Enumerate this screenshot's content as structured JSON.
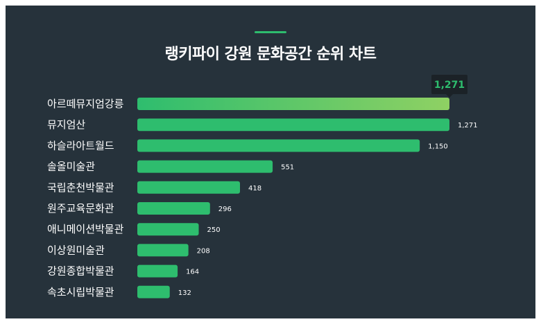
{
  "title": "랭키파이 강원 문화공간 순위 차트",
  "colors": {
    "background": "#26323b",
    "bar": "#2ebd6e",
    "highlight_start": "#2ebd6e",
    "highlight_end": "#8fd163",
    "tooltip_bg": "#1b2227",
    "accent": "#2ebd6e"
  },
  "chart_data": {
    "type": "bar",
    "orientation": "horizontal",
    "title": "랭키파이 강원 문화공간 순위 차트",
    "categories": [
      "아르떼뮤지엄강릉",
      "뮤지엄산",
      "하슬라아트월드",
      "솔올미술관",
      "국립춘천박물관",
      "원주교육문화관",
      "애니메이션박물관",
      "이상원미술관",
      "강원종합박물관",
      "속초시립박물관"
    ],
    "values": [
      1271,
      1271,
      1150,
      551,
      418,
      296,
      250,
      208,
      164,
      132
    ],
    "value_labels": [
      "1,271",
      "1,271",
      "1,150",
      "551",
      "418",
      "296",
      "250",
      "208",
      "164",
      "132"
    ],
    "highlight": {
      "index": 0,
      "label": "1,271",
      "style": "gradient with tooltip"
    },
    "xlim": [
      0,
      1271
    ],
    "grid": false,
    "legend": "none"
  }
}
